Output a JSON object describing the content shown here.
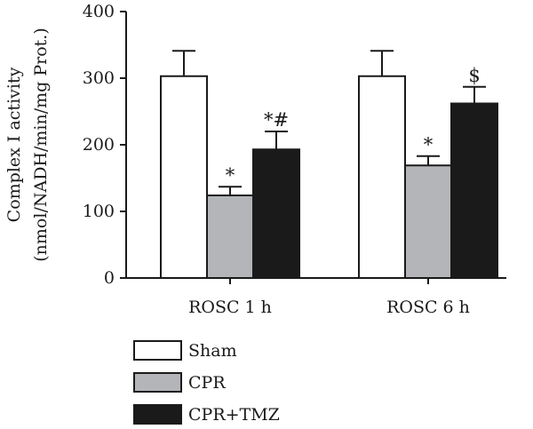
{
  "chart_data": {
    "type": "bar",
    "categories": [
      "ROSC 1 h",
      "ROSC 6 h"
    ],
    "series": [
      {
        "name": "Sham",
        "values": [
          303,
          303
        ],
        "errors": [
          38,
          38
        ],
        "fill": "#ffffff",
        "annotations": [
          "",
          ""
        ]
      },
      {
        "name": "CPR",
        "values": [
          124,
          169
        ],
        "errors": [
          13,
          14
        ],
        "fill": "#b3b5b8",
        "annotations": [
          "*",
          "*"
        ]
      },
      {
        "name": "CPR+TMZ",
        "values": [
          193,
          262
        ],
        "errors": [
          27,
          25
        ],
        "fill": "#1a1a1a",
        "annotations": [
          "*#",
          "$"
        ]
      }
    ],
    "ylabel_line1": "Complex I activity",
    "ylabel_line2": "(nmol/NADH/min/mg Prot.)",
    "ylim": [
      0,
      400
    ],
    "yticks": [
      0,
      100,
      200,
      300,
      400
    ],
    "grid": false,
    "legend_position": "bottom-left"
  }
}
